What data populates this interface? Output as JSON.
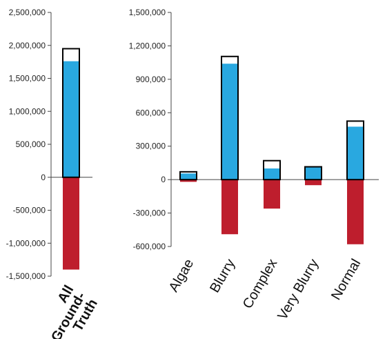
{
  "colors": {
    "total_outline": "#000000",
    "positive": "#29a8e0",
    "negative": "#be1e2d",
    "axis": "#444444"
  },
  "chart_data": [
    {
      "type": "bar",
      "categories": [
        "All Ground-Truth"
      ],
      "category_lines": [
        [
          "All",
          "Ground-",
          "Truth"
        ]
      ],
      "series": [
        {
          "values": [
            1950000
          ]
        },
        {
          "values": [
            1760000
          ]
        },
        {
          "values": [
            -1400000
          ]
        }
      ],
      "ylim": [
        -1500000,
        2500000
      ],
      "yticks": [
        2500000,
        2000000,
        1500000,
        1000000,
        500000,
        0,
        -500000,
        -1000000,
        -1500000
      ],
      "ytick_labels": [
        "2,500,000",
        "2,000,000",
        "1,500,000",
        "1,000,000",
        "500,000",
        "0",
        "-500,000",
        "-1,000,000",
        "-1,500,000"
      ],
      "grid": false
    },
    {
      "type": "bar",
      "categories": [
        "Algae",
        "Blurry",
        "Complex",
        "Very Blurry",
        "Normal"
      ],
      "series": [
        {
          "values": [
            70000,
            1105000,
            170000,
            115000,
            525000
          ]
        },
        {
          "values": [
            55000,
            1040000,
            100000,
            110000,
            475000
          ]
        },
        {
          "values": [
            -20000,
            -490000,
            -260000,
            -50000,
            -580000
          ]
        }
      ],
      "ylim": [
        -600000,
        1500000
      ],
      "yticks": [
        1500000,
        1200000,
        900000,
        600000,
        300000,
        0,
        -300000,
        -600000
      ],
      "ytick_labels": [
        "1,500,000",
        "1,200,000",
        "900,000",
        "600,000",
        "300,000",
        "0",
        "-300,000",
        "-600,000"
      ],
      "grid": false
    }
  ]
}
